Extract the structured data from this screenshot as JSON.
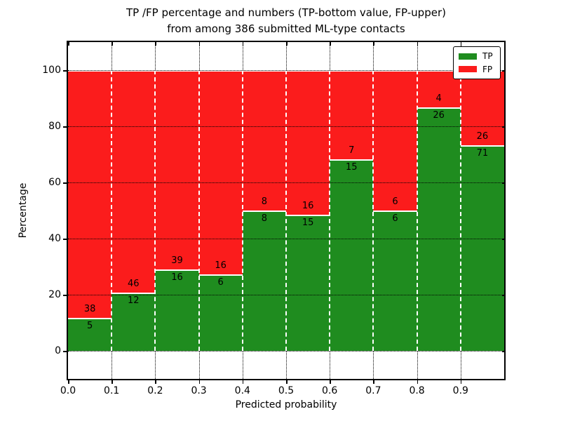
{
  "title": {
    "line1": "TP /FP percentage and numbers (TP-bottom value, FP-upper)",
    "line2": "from among 386 submitted ML-type contacts"
  },
  "axes": {
    "xlabel": "Predicted probability",
    "ylabel": "Percentage",
    "x_tick_labels": [
      "0.0",
      "0.1",
      "0.2",
      "0.3",
      "0.4",
      "0.5",
      "0.6",
      "0.7",
      "0.8",
      "0.9"
    ],
    "y_tick_labels": [
      "0",
      "20",
      "40",
      "60",
      "80",
      "100"
    ],
    "y_tick_values": [
      0,
      20,
      40,
      60,
      80,
      100
    ]
  },
  "legend": {
    "items": [
      {
        "label": "TP",
        "color": "#1f8c1f"
      },
      {
        "label": "FP",
        "color": "#fb1c1c"
      }
    ]
  },
  "chart_data": {
    "type": "bar",
    "stacked": true,
    "normalized_to_percent": true,
    "title": "TP /FP percentage and numbers (TP-bottom value, FP-upper) from among 386 submitted ML-type contacts",
    "xlabel": "Predicted probability",
    "ylabel": "Percentage",
    "xlim": [
      0.0,
      1.0
    ],
    "ylim": [
      -10,
      110
    ],
    "grid": true,
    "legend_position": "upper right",
    "total_contacts": 386,
    "categories": [
      "0.0-0.1",
      "0.1-0.2",
      "0.2-0.3",
      "0.3-0.4",
      "0.4-0.5",
      "0.5-0.6",
      "0.6-0.7",
      "0.7-0.8",
      "0.8-0.9",
      "0.9-1.0"
    ],
    "series": [
      {
        "name": "TP",
        "color": "#1f8c1f",
        "counts": [
          5,
          12,
          16,
          6,
          8,
          15,
          15,
          6,
          26,
          71
        ]
      },
      {
        "name": "FP",
        "color": "#fb1c1c",
        "counts": [
          38,
          46,
          39,
          16,
          8,
          16,
          7,
          6,
          4,
          26
        ]
      }
    ],
    "tp_percent": [
      11.63,
      20.69,
      29.09,
      27.27,
      50.0,
      48.39,
      68.18,
      50.0,
      86.67,
      73.2
    ]
  }
}
